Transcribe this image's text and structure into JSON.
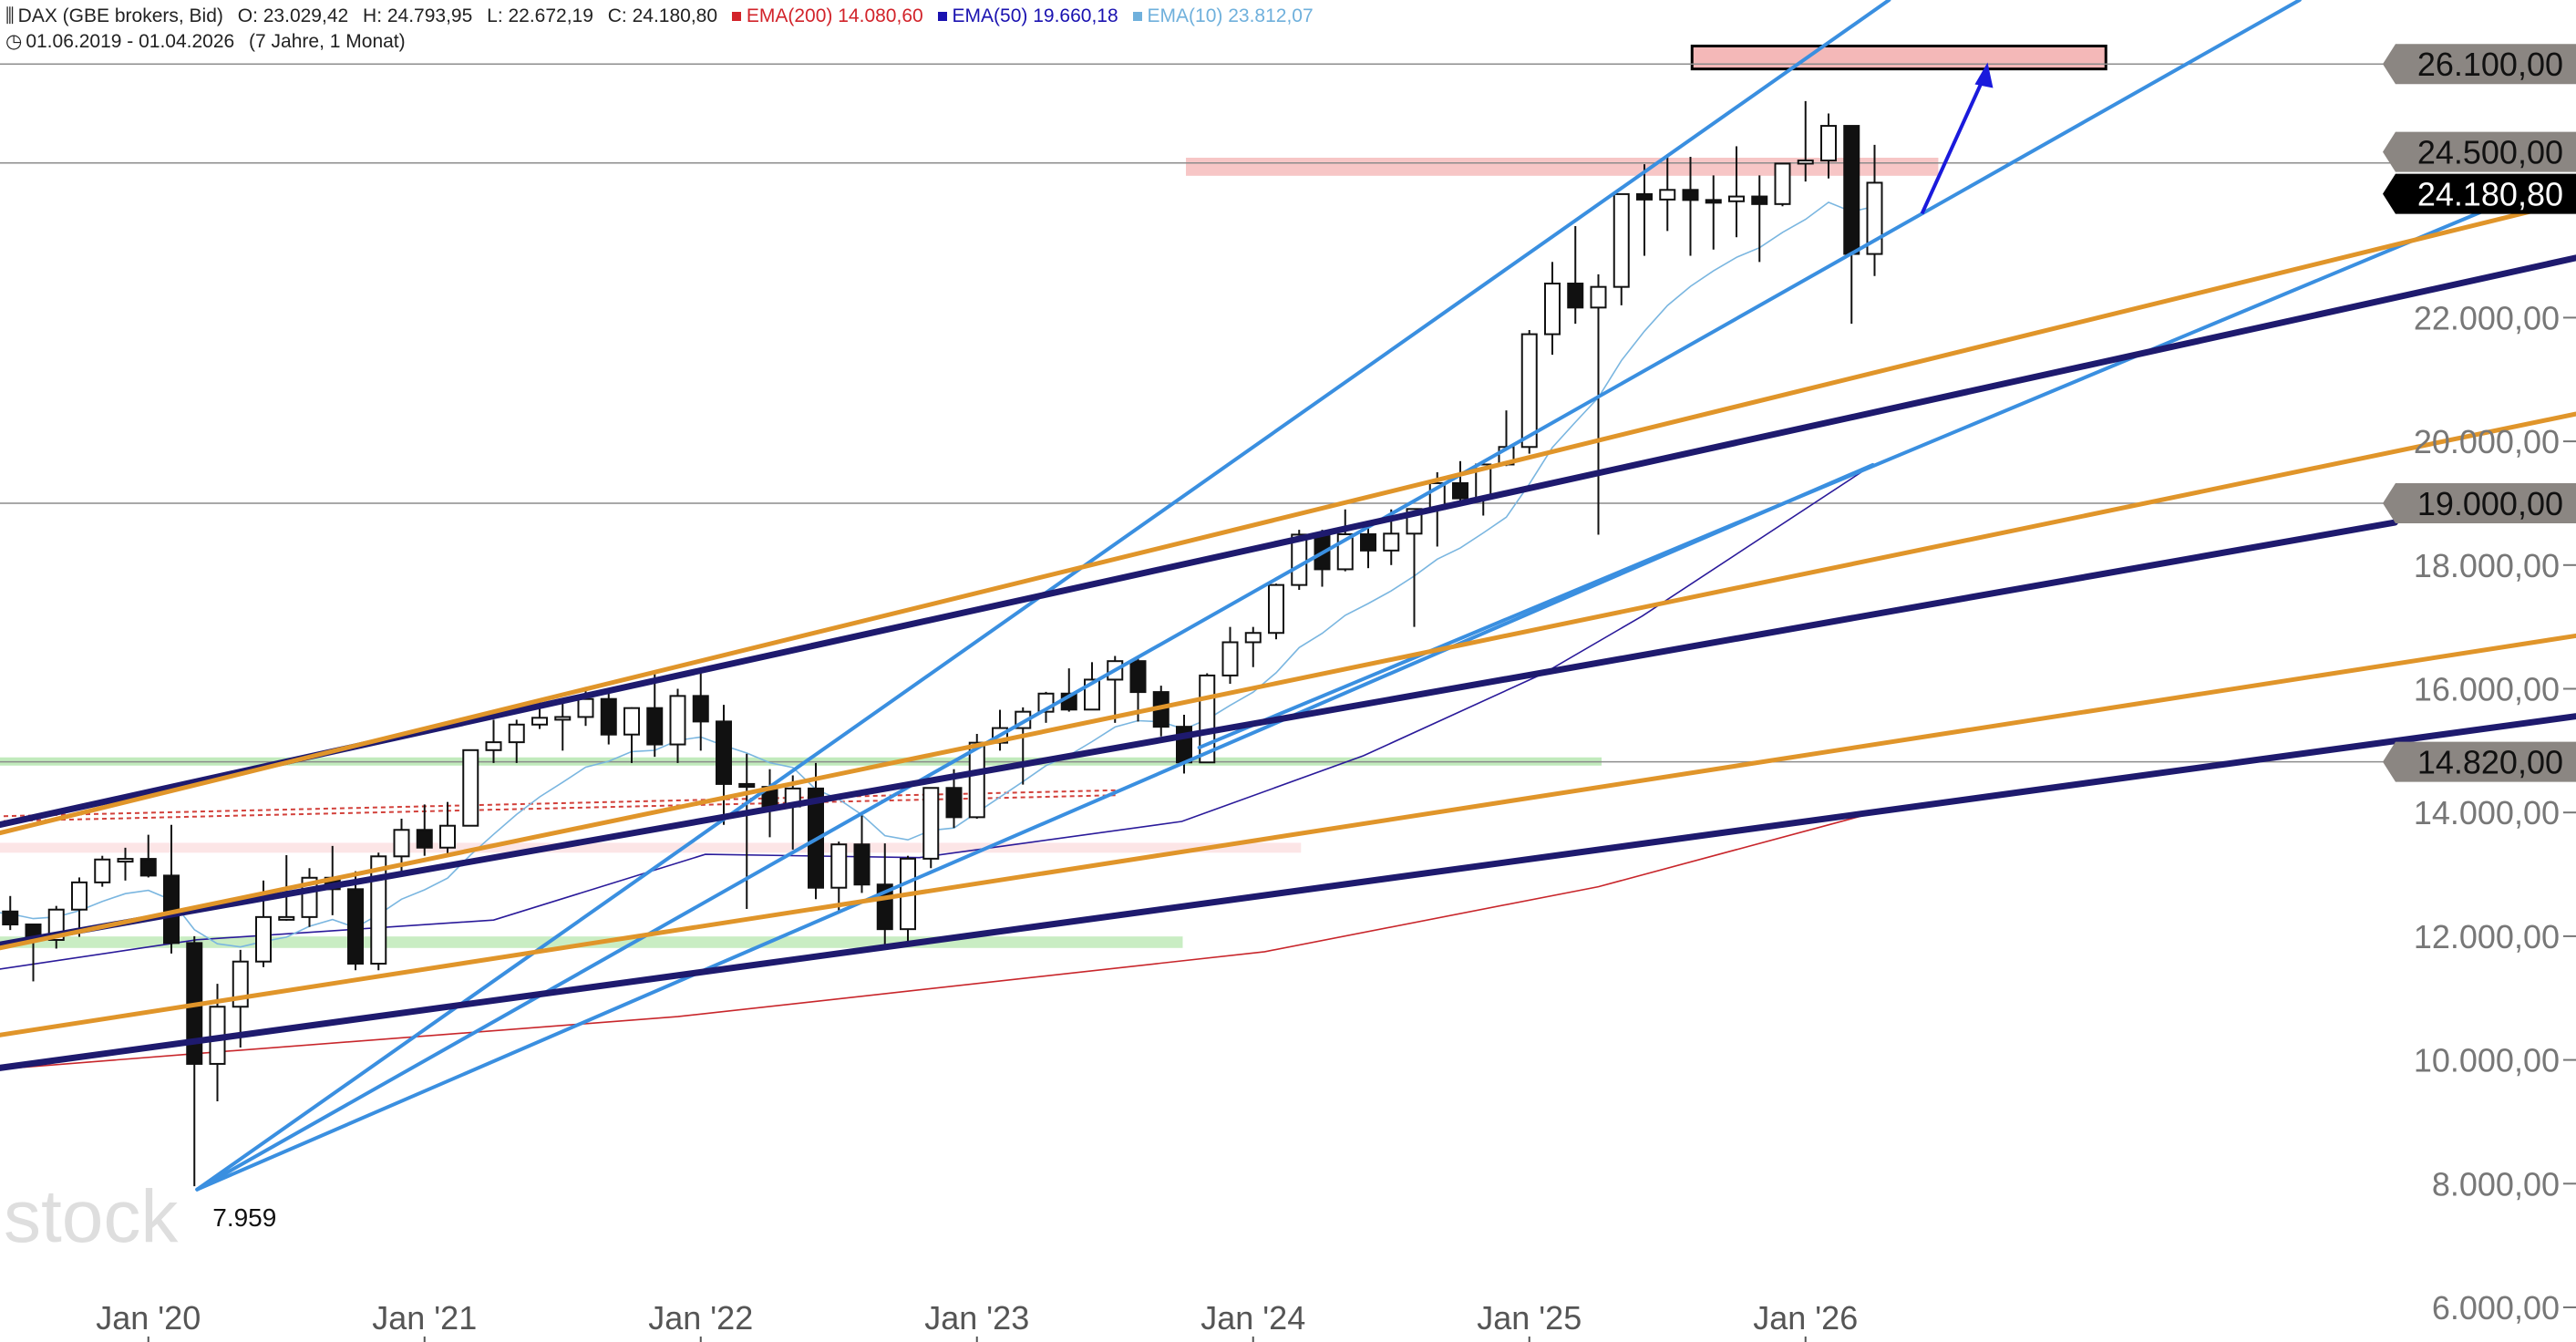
{
  "header": {
    "symbol_icon": "candlestick-icon",
    "instrument": "DAX (GBE brokers, Bid)",
    "open": "O: 23.029,42",
    "high": "H: 24.793,95",
    "low": "L: 22.672,19",
    "close": "C: 24.180,80",
    "ema200": {
      "label": "EMA(200)",
      "value": "14.080,60",
      "color": "#d2232a"
    },
    "ema50": {
      "label": "EMA(50)",
      "value": "19.660,18",
      "color": "#1a12b0"
    },
    "ema10": {
      "label": "EMA(10)",
      "value": "23.812,07",
      "color": "#6fb0dc"
    },
    "clock_icon": "clock-icon",
    "range": "01.06.2019 - 01.04.2026",
    "duration": "(7 Jahre, 1 Monat)"
  },
  "watermark": "stock3",
  "chart_data": {
    "type": "candlestick",
    "title": "DAX (GBE brokers, Bid)",
    "interval": "monthly",
    "x_start": "2019-06",
    "x_tick_labels": [
      {
        "label": "Jan '20",
        "index": 7
      },
      {
        "label": "Jan '21",
        "index": 19
      },
      {
        "label": "Jan '22",
        "index": 31
      },
      {
        "label": "Jan '23",
        "index": 43
      },
      {
        "label": "Jan '24",
        "index": 55
      },
      {
        "label": "Jan '25",
        "index": 67
      },
      {
        "label": "Jan '26",
        "index": 79
      }
    ],
    "y_ticks": [
      {
        "value": 22000,
        "label": "22.000,00"
      },
      {
        "value": 20000,
        "label": "20.000,00"
      },
      {
        "value": 18000,
        "label": "18.000,00"
      },
      {
        "value": 16000,
        "label": "16.000,00"
      },
      {
        "value": 14000,
        "label": "14.000,00"
      },
      {
        "value": 12000,
        "label": "12.000,00"
      },
      {
        "value": 10000,
        "label": "10.000,00"
      },
      {
        "value": 8000,
        "label": "8.000,00"
      },
      {
        "value": 6000,
        "label": "6.000,00"
      }
    ],
    "ylim": [
      6000,
      27000
    ],
    "price_tags": [
      {
        "value": 26100,
        "label": "26.100,00",
        "kind": "level"
      },
      {
        "value": 24500,
        "label": "24.500,00",
        "kind": "level"
      },
      {
        "value": 19000,
        "label": "19.000,00",
        "kind": "level"
      },
      {
        "value": 14820,
        "label": "14.820,00",
        "kind": "level"
      },
      {
        "value": 24180.8,
        "label": "24.180,80",
        "kind": "last"
      }
    ],
    "low_annotation": {
      "label": "7.959",
      "index": 9,
      "value": 7959
    },
    "ohlc": [
      [
        12000,
        12440,
        11700,
        12400
      ],
      [
        12400,
        12650,
        12100,
        12190
      ],
      [
        12190,
        12200,
        11270,
        11940
      ],
      [
        11940,
        12490,
        11800,
        12430
      ],
      [
        12430,
        12950,
        11990,
        12870
      ],
      [
        12870,
        13300,
        12800,
        13240
      ],
      [
        13240,
        13430,
        12900,
        13250
      ],
      [
        13250,
        13640,
        12950,
        12980
      ],
      [
        12980,
        13800,
        11720,
        11890
      ],
      [
        11890,
        12000,
        7959,
        9936
      ],
      [
        9936,
        11230,
        9330,
        10860
      ],
      [
        10860,
        11780,
        10200,
        11590
      ],
      [
        11590,
        12900,
        11500,
        12310
      ],
      [
        12310,
        13310,
        12250,
        12310
      ],
      [
        12310,
        13100,
        12150,
        12945
      ],
      [
        12945,
        13460,
        12340,
        12760
      ],
      [
        12760,
        13050,
        11450,
        11556
      ],
      [
        11556,
        13350,
        11450,
        13291
      ],
      [
        13291,
        13900,
        13050,
        13719
      ],
      [
        13719,
        14130,
        13300,
        13432
      ],
      [
        13432,
        14170,
        13340,
        13786
      ],
      [
        13786,
        15010,
        13800,
        15008
      ],
      [
        15008,
        15500,
        14800,
        15136
      ],
      [
        15136,
        15500,
        14800,
        15421
      ],
      [
        15421,
        15800,
        15350,
        15531
      ],
      [
        15531,
        15810,
        15000,
        15544
      ],
      [
        15544,
        16030,
        15400,
        15835
      ],
      [
        15835,
        15960,
        15100,
        15260
      ],
      [
        15260,
        15700,
        14800,
        15688
      ],
      [
        15688,
        16290,
        14900,
        15100
      ],
      [
        15100,
        16000,
        14800,
        15884
      ],
      [
        15884,
        16280,
        15000,
        15471
      ],
      [
        15471,
        15740,
        13800,
        14461
      ],
      [
        14461,
        14950,
        12440,
        14414
      ],
      [
        14414,
        14700,
        13600,
        14098
      ],
      [
        14098,
        14600,
        13400,
        14388
      ],
      [
        14388,
        14800,
        12600,
        12784
      ],
      [
        12784,
        13530,
        12400,
        13484
      ],
      [
        13484,
        13950,
        12700,
        12835
      ],
      [
        12835,
        13500,
        11860,
        12114
      ],
      [
        12114,
        13300,
        11900,
        13253
      ],
      [
        13253,
        14400,
        13100,
        14397
      ],
      [
        14397,
        14700,
        13750,
        13924
      ],
      [
        13924,
        15270,
        13900,
        15128
      ],
      [
        15128,
        15660,
        15000,
        15365
      ],
      [
        15365,
        15700,
        14450,
        15629
      ],
      [
        15629,
        15950,
        15450,
        15922
      ],
      [
        15922,
        16330,
        15630,
        15664
      ],
      [
        15664,
        16430,
        15700,
        16148
      ],
      [
        16148,
        16530,
        15450,
        16447
      ],
      [
        16447,
        16500,
        15470,
        15947
      ],
      [
        15947,
        16050,
        15230,
        15386
      ],
      [
        15386,
        15580,
        14630,
        14810
      ],
      [
        14810,
        16250,
        14800,
        16215
      ],
      [
        16215,
        17000,
        16080,
        16752
      ],
      [
        16752,
        17000,
        16350,
        16903
      ],
      [
        16903,
        17700,
        16800,
        17678
      ],
      [
        17678,
        18570,
        17600,
        18492
      ],
      [
        18492,
        18570,
        17650,
        17932
      ],
      [
        17932,
        18900,
        17900,
        18498
      ],
      [
        18498,
        18700,
        17950,
        18235
      ],
      [
        18235,
        18900,
        18000,
        18508
      ],
      [
        18508,
        18900,
        17000,
        18906
      ],
      [
        18906,
        19500,
        18300,
        19324
      ],
      [
        19324,
        19680,
        19000,
        19078
      ],
      [
        19078,
        19670,
        18800,
        19626
      ],
      [
        19626,
        20500,
        19600,
        19909
      ],
      [
        19909,
        21800,
        19800,
        21732
      ],
      [
        21732,
        22900,
        21400,
        22551
      ],
      [
        22551,
        23480,
        21900,
        22163
      ],
      [
        22163,
        22700,
        18490,
        22497
      ],
      [
        22497,
        24000,
        22200,
        23997
      ],
      [
        23997,
        24480,
        23000,
        23909
      ],
      [
        23909,
        24640,
        23400,
        24065
      ],
      [
        24065,
        24600,
        23000,
        23902
      ],
      [
        23902,
        24300,
        23100,
        23881
      ],
      [
        23881,
        24770,
        23300,
        23958
      ],
      [
        23958,
        24300,
        22900,
        23836
      ],
      [
        23836,
        24500,
        23800,
        24490
      ],
      [
        24490,
        25500,
        24200,
        24540
      ],
      [
        24540,
        25300,
        24250,
        25100
      ],
      [
        25100,
        25100,
        21900,
        23030
      ],
      [
        23029,
        24794,
        22672,
        24181
      ]
    ],
    "ema200_points": [
      [
        0.5,
        9850
      ],
      [
        9,
        10100
      ],
      [
        30,
        10700
      ],
      [
        55.5,
        11750
      ],
      [
        70,
        12800
      ],
      [
        82,
        14000
      ]
    ],
    "ema50_points": [
      [
        0.5,
        11465
      ],
      [
        9.1,
        11943
      ],
      [
        22,
        12261
      ],
      [
        31.2,
        13324
      ],
      [
        40.5,
        13271
      ],
      [
        51.9,
        13855
      ],
      [
        59.8,
        14918
      ],
      [
        67.6,
        16245
      ],
      [
        71.9,
        17175
      ],
      [
        81.9,
        19619
      ]
    ],
    "horizontal_lines": [
      26100,
      24500,
      19000,
      14820
    ],
    "zones": [
      {
        "name": "target-box",
        "x": [
          74.07,
          92.05
        ],
        "y": [
          26020,
          26391
        ],
        "fill": "#f4b8b8",
        "stroke": "#000000"
      },
      {
        "name": "resistance-zone",
        "x": [
          52.08,
          84.77
        ],
        "y": [
          24293,
          24585
        ],
        "fill": "#f6bcbc"
      },
      {
        "name": "support-zone-14820",
        "x": [
          0,
          70.14
        ],
        "y": [
          14758,
          14891
        ],
        "fill": "#b6e6b0"
      },
      {
        "name": "support-zone-12000",
        "x": [
          0,
          51.94
        ],
        "y": [
          11810,
          11996
        ],
        "fill": "#bfeab8"
      },
      {
        "name": "light-pink-zone",
        "x": [
          0,
          57.08
        ],
        "y": [
          13350,
          13510
        ],
        "fill": "#fbe0e2"
      }
    ],
    "dotted_lines": [
      {
        "p1": [
          0,
          13855
        ],
        "p2": [
          49.09,
          14280
        ],
        "color": "#d2403a"
      },
      {
        "p1": [
          0,
          13935
        ],
        "p2": [
          49.09,
          14360
        ],
        "color": "#d2403a"
      }
    ],
    "trend_lines": [
      {
        "name": "fan-line-1",
        "p1": [
          9.12,
          7906
        ],
        "p2": [
          82.63,
          27135
        ],
        "color": "#3a8fe0",
        "kind": "light"
      },
      {
        "name": "fan-line-2",
        "p1": [
          9.12,
          7906
        ],
        "p2": [
          100.47,
          27135
        ],
        "color": "#3a8fe0",
        "kind": "light"
      },
      {
        "name": "fan-line-3",
        "p1": [
          9.12,
          7906
        ],
        "p2": [
          81.92,
          19619
        ],
        "color": "#3a8fe0",
        "kind": "light"
      },
      {
        "name": "parallel-blue",
        "p1": [
          52.66,
          15050
        ],
        "p2": [
          109.04,
          23815
        ],
        "color": "#3a8fe0",
        "kind": "light"
      },
      {
        "name": "channel-navy-top",
        "p1": [
          0.55,
          13802
        ],
        "p2": [
          112.46,
          22965
        ],
        "color": "#1e1a6e",
        "kind": "thick"
      },
      {
        "name": "channel-navy-mid",
        "p1": [
          0.55,
          11863
        ],
        "p2": [
          104.61,
          18689
        ],
        "color": "#1e1a6e",
        "kind": "thick"
      },
      {
        "name": "channel-navy-bottom",
        "p1": [
          0.55,
          9871
        ],
        "p2": [
          112.46,
          15555
        ],
        "color": "#1e1a6e",
        "kind": "thick"
      },
      {
        "name": "channel-orange-top",
        "p1": [
          0.55,
          13669
        ],
        "p2": [
          112.46,
          23895
        ],
        "color": "#e0952a",
        "kind": "mid"
      },
      {
        "name": "channel-orange-mid",
        "p1": [
          0.55,
          11810
        ],
        "p2": [
          112.46,
          20442
        ],
        "color": "#e0952a",
        "kind": "mid"
      },
      {
        "name": "channel-orange-bottom",
        "p1": [
          0.55,
          10402
        ],
        "p2": [
          112.46,
          16856
        ],
        "color": "#e0952a",
        "kind": "mid"
      }
    ],
    "arrow": {
      "p1": [
        84.06,
        23682
      ],
      "p2": [
        86.91,
        26126
      ],
      "color": "#1a1adc"
    }
  }
}
